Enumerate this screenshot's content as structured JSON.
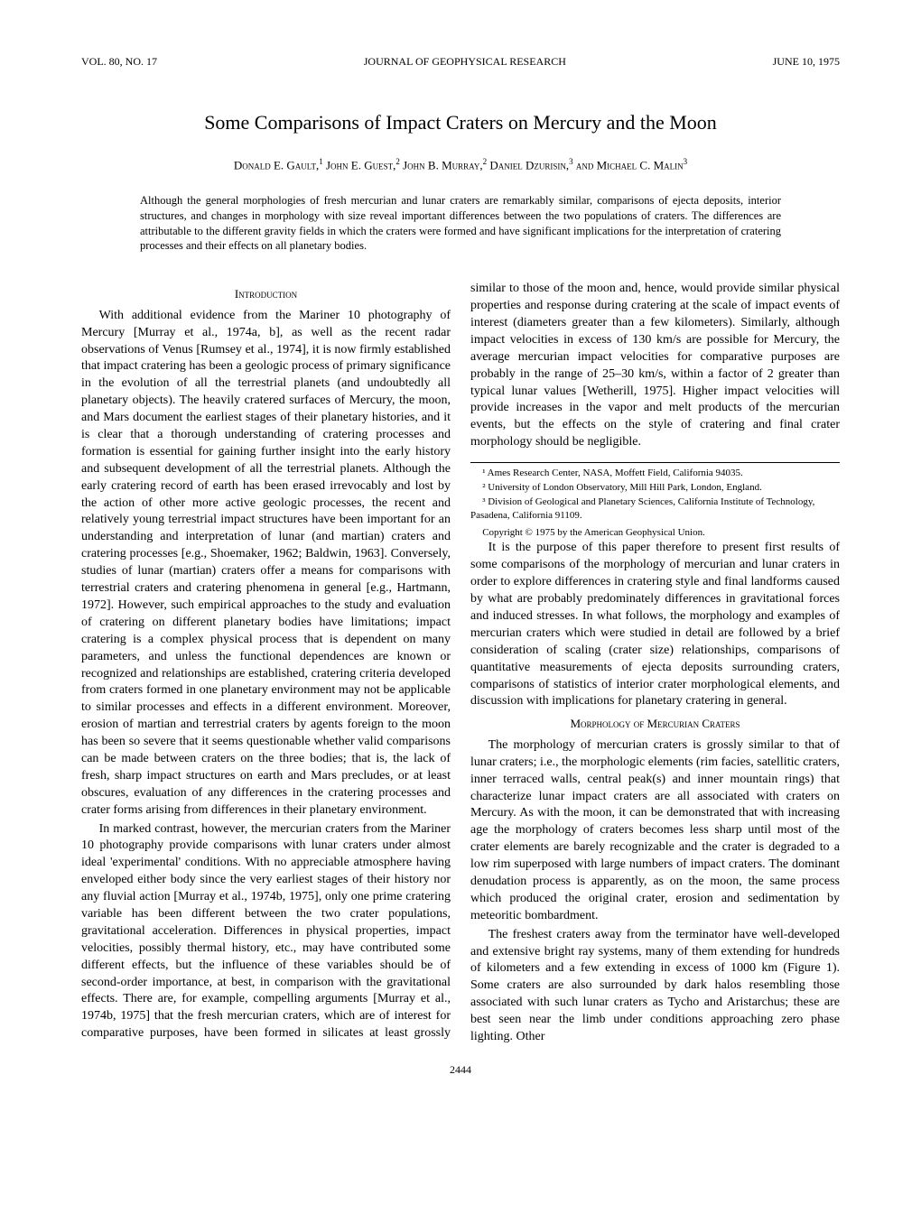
{
  "header": {
    "volume": "VOL. 80, NO. 17",
    "journal": "JOURNAL OF GEOPHYSICAL RESEARCH",
    "date": "JUNE 10, 1975"
  },
  "title": "Some Comparisons of Impact Craters on Mercury and the Moon",
  "authors_html": "Donald E. Gault,¹ John E. Guest,² John B. Murray,² Daniel Dzurisin,³ and Michael C. Malin³",
  "abstract": "Although the general morphologies of fresh mercurian and lunar craters are remarkably similar, comparisons of ejecta deposits, interior structures, and changes in morphology with size reveal important differences between the two populations of craters. The differences are attributable to the different gravity fields in which the craters were formed and have significant implications for the interpretation of cratering processes and their effects on all planetary bodies.",
  "sections": {
    "intro_heading": "Introduction",
    "intro_p1": "With additional evidence from the Mariner 10 photography of Mercury [Murray et al., 1974a, b], as well as the recent radar observations of Venus [Rumsey et al., 1974], it is now firmly established that impact cratering has been a geologic process of primary significance in the evolution of all the terrestrial planets (and undoubtedly all planetary objects). The heavily cratered surfaces of Mercury, the moon, and Mars document the earliest stages of their planetary histories, and it is clear that a thorough understanding of cratering processes and formation is essential for gaining further insight into the early history and subsequent development of all the terrestrial planets. Although the early cratering record of earth has been erased irrevocably and lost by the action of other more active geologic processes, the recent and relatively young terrestrial impact structures have been important for an understanding and interpretation of lunar (and martian) craters and cratering processes [e.g., Shoemaker, 1962; Baldwin, 1963]. Conversely, studies of lunar (martian) craters offer a means for comparisons with terrestrial craters and cratering phenomena in general [e.g., Hartmann, 1972]. However, such empirical approaches to the study and evaluation of cratering on different planetary bodies have limitations; impact cratering is a complex physical process that is dependent on many parameters, and unless the functional dependences are known or recognized and relationships are established, cratering criteria developed from craters formed in one planetary environment may not be applicable to similar processes and effects in a different environment. Moreover, erosion of martian and terrestrial craters by agents foreign to the moon has been so severe that it seems questionable whether valid comparisons can be made between craters on the three bodies; that is, the lack of fresh, sharp impact structures on earth and Mars precludes, or at least obscures, evaluation of any differences in the cratering processes and crater forms arising from differences in their planetary environment.",
    "intro_p2": "In marked contrast, however, the mercurian craters from the Mariner 10 photography provide comparisons with lunar craters under almost ideal 'experimental' conditions. With no appreciable atmosphere having enveloped either body since the very earliest stages of their history nor any fluvial action [Murray et al., 1974b, 1975], only one prime cratering variable has been different between the two crater populations, gravitational acceleration. Differences in physical properties, impact velocities, possibly thermal history, etc., may have contributed some different effects, but the influence of these variables should be of second-order importance, at best, in comparison with the gravitational effects. There are, for example, compelling arguments [Murray et al., 1974b, 1975] that the fresh mercurian craters, which are of interest for comparative purposes, have been formed in silicates at least grossly similar to those of the moon and, hence, would provide similar physical properties and response during cratering at the scale of impact events of interest (diameters greater than a few kilometers). Similarly, although impact velocities in excess of 130 km/s are possible for Mercury, the average mercurian impact velocities for comparative purposes are probably in the range of 25–30 km/s, within a factor of 2 greater than typical lunar values [Wetherill, 1975]. Higher impact velocities will provide increases in the vapor and melt products of the mercurian events, but the effects on the style of cratering and final crater morphology should be negligible.",
    "intro_p3": "It is the purpose of this paper therefore to present first results of some comparisons of the morphology of mercurian and lunar craters in order to explore differences in cratering style and final landforms caused by what are probably predominately differences in gravitational forces and induced stresses. In what follows, the morphology and examples of mercurian craters which were studied in detail are followed by a brief consideration of scaling (crater size) relationships, comparisons of quantitative measurements of ejecta deposits surrounding craters, comparisons of statistics of interior crater morphological elements, and discussion with implications for planetary cratering in general.",
    "morph_heading": "Morphology of Mercurian Craters",
    "morph_p1": "The morphology of mercurian craters is grossly similar to that of lunar craters; i.e., the morphologic elements (rim facies, satellitic craters, inner terraced walls, central peak(s) and inner mountain rings) that characterize lunar impact craters are all associated with craters on Mercury. As with the moon, it can be demonstrated that with increasing age the morphology of craters becomes less sharp until most of the crater elements are barely recognizable and the crater is degraded to a low rim superposed with large numbers of impact craters. The dominant denudation process is apparently, as on the moon, the same process which produced the original crater, erosion and sedimentation by meteoritic bombardment.",
    "morph_p2": "The freshest craters away from the terminator have well-developed and extensive bright ray systems, many of them extending for hundreds of kilometers and a few extending in excess of 1000 km (Figure 1). Some craters are also surrounded by dark halos resembling those associated with such lunar craters as Tycho and Aristarchus; these are best seen near the limb under conditions approaching zero phase lighting. Other"
  },
  "footnotes": {
    "f1": "¹ Ames Research Center, NASA, Moffett Field, California   94035.",
    "f2": "² University of London Observatory, Mill Hill Park, London, England.",
    "f3": "³ Division of Geological and Planetary Sciences, California Institute of Technology, Pasadena, California   91109.",
    "copyright": "Copyright © 1975 by the American Geophysical Union."
  },
  "page_number": "2444"
}
